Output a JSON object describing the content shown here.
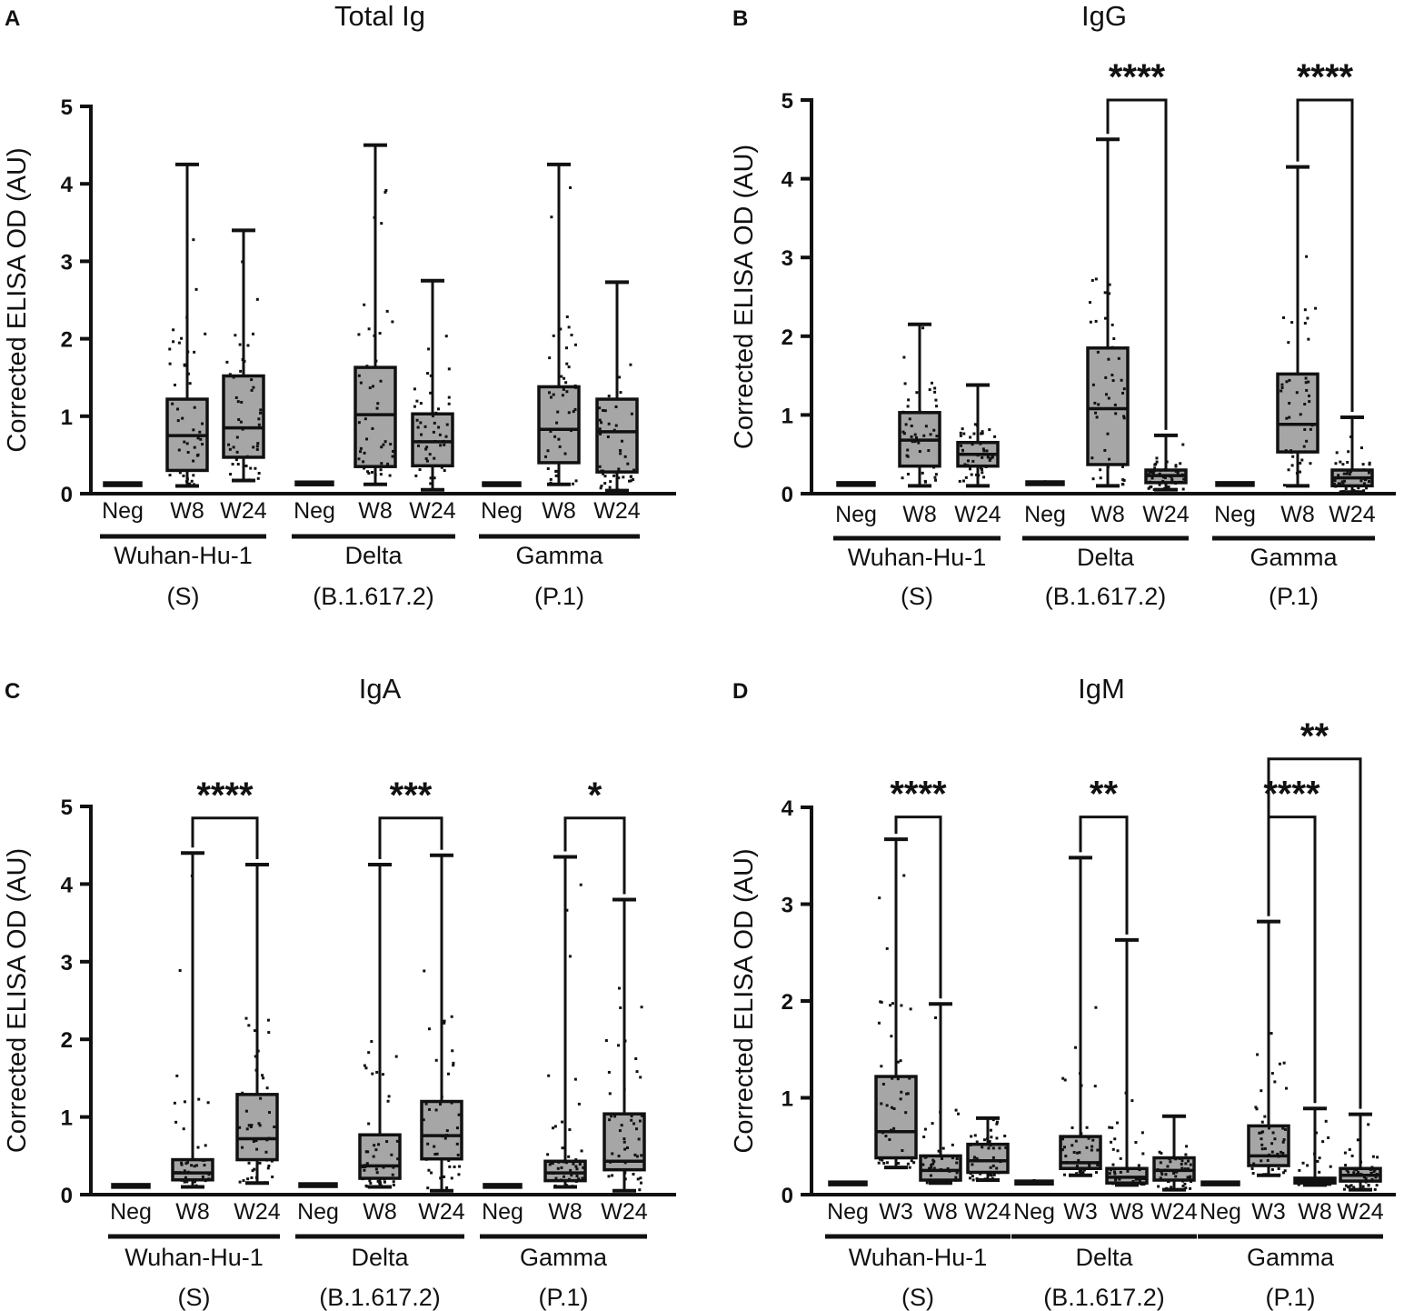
{
  "figure": "Corrected ELISA OD box plots",
  "chart_data": [
    {
      "type": "box",
      "panel": "A",
      "title": "Total Ig",
      "ylabel": "Corrected ELISA OD (AU)",
      "ylim": [
        0,
        5
      ],
      "yticks": [
        "0",
        "1",
        "2",
        "3",
        "4",
        "5"
      ],
      "groups": [
        {
          "name": "Wuhan-Hu-1",
          "sub": "(S)",
          "boxes": [
            {
              "label": "Neg",
              "min": 0.1,
              "q1": 0.12,
              "median": 0.13,
              "q3": 0.14,
              "max": 0.15
            },
            {
              "label": "W8",
              "min": 0.1,
              "q1": 0.3,
              "median": 0.75,
              "q3": 1.22,
              "max": 4.25
            },
            {
              "label": "W24",
              "min": 0.17,
              "q1": 0.47,
              "median": 0.85,
              "q3": 1.52,
              "max": 3.4
            }
          ]
        },
        {
          "name": "Delta",
          "sub": "(B.1.617.2)",
          "boxes": [
            {
              "label": "Neg",
              "min": 0.1,
              "q1": 0.12,
              "median": 0.13,
              "q3": 0.15,
              "max": 0.17
            },
            {
              "label": "W8",
              "min": 0.12,
              "q1": 0.35,
              "median": 1.02,
              "q3": 1.63,
              "max": 4.5
            },
            {
              "label": "W24",
              "min": 0.05,
              "q1": 0.36,
              "median": 0.67,
              "q3": 1.03,
              "max": 2.75
            }
          ]
        },
        {
          "name": "Gamma",
          "sub": "(P.1)",
          "boxes": [
            {
              "label": "Neg",
              "min": 0.11,
              "q1": 0.12,
              "median": 0.13,
              "q3": 0.14,
              "max": 0.15
            },
            {
              "label": "W8",
              "min": 0.12,
              "q1": 0.4,
              "median": 0.83,
              "q3": 1.38,
              "max": 4.25
            },
            {
              "label": "W24",
              "min": 0.04,
              "q1": 0.28,
              "median": 0.8,
              "q3": 1.22,
              "max": 2.73
            }
          ]
        }
      ],
      "significance": []
    },
    {
      "type": "box",
      "panel": "B",
      "title": "IgG",
      "ylabel": "Corrected ELISA OD (AU)",
      "ylim": [
        0,
        5
      ],
      "yticks": [
        "0",
        "1",
        "2",
        "3",
        "4",
        "5"
      ],
      "groups": [
        {
          "name": "Wuhan-Hu-1",
          "sub": "(S)",
          "boxes": [
            {
              "label": "Neg",
              "min": 0.1,
              "q1": 0.12,
              "median": 0.13,
              "q3": 0.14,
              "max": 0.15
            },
            {
              "label": "W8",
              "min": 0.1,
              "q1": 0.35,
              "median": 0.68,
              "q3": 1.03,
              "max": 2.15
            },
            {
              "label": "W24",
              "min": 0.1,
              "q1": 0.35,
              "median": 0.5,
              "q3": 0.65,
              "max": 1.38
            }
          ]
        },
        {
          "name": "Delta",
          "sub": "(B.1.617.2)",
          "boxes": [
            {
              "label": "Neg",
              "min": 0.1,
              "q1": 0.12,
              "median": 0.13,
              "q3": 0.15,
              "max": 0.17
            },
            {
              "label": "W8",
              "min": 0.1,
              "q1": 0.37,
              "median": 1.08,
              "q3": 1.85,
              "max": 4.5
            },
            {
              "label": "W24",
              "min": 0.05,
              "q1": 0.14,
              "median": 0.23,
              "q3": 0.3,
              "max": 0.74
            }
          ]
        },
        {
          "name": "Gamma",
          "sub": "(P.1)",
          "boxes": [
            {
              "label": "Neg",
              "min": 0.11,
              "q1": 0.12,
              "median": 0.13,
              "q3": 0.14,
              "max": 0.15
            },
            {
              "label": "W8",
              "min": 0.1,
              "q1": 0.53,
              "median": 0.88,
              "q3": 1.52,
              "max": 4.15
            },
            {
              "label": "W24",
              "min": 0.02,
              "q1": 0.1,
              "median": 0.2,
              "q3": 0.3,
              "max": 0.97
            }
          ]
        }
      ],
      "significance": [
        {
          "from": [
            1,
            1
          ],
          "to": [
            1,
            2
          ],
          "label": "****",
          "y": 5.0
        },
        {
          "from": [
            2,
            1
          ],
          "to": [
            2,
            2
          ],
          "label": "****",
          "y": 5.0
        }
      ]
    },
    {
      "type": "box",
      "panel": "C",
      "title": "IgA",
      "ylabel": "Corrected ELISA OD (AU)",
      "ylim": [
        0,
        5
      ],
      "yticks": [
        "0",
        "1",
        "2",
        "3",
        "4",
        "5"
      ],
      "groups": [
        {
          "name": "Wuhan-Hu-1",
          "sub": "(S)",
          "boxes": [
            {
              "label": "Neg",
              "min": 0.1,
              "q1": 0.11,
              "median": 0.12,
              "q3": 0.13,
              "max": 0.14
            },
            {
              "label": "W8",
              "min": 0.1,
              "q1": 0.19,
              "median": 0.28,
              "q3": 0.45,
              "max": 4.4
            },
            {
              "label": "W24",
              "min": 0.15,
              "q1": 0.45,
              "median": 0.72,
              "q3": 1.29,
              "max": 4.25
            }
          ]
        },
        {
          "name": "Delta",
          "sub": "(B.1.617.2)",
          "boxes": [
            {
              "label": "Neg",
              "min": 0.1,
              "q1": 0.12,
              "median": 0.13,
              "q3": 0.14,
              "max": 0.15
            },
            {
              "label": "W8",
              "min": 0.1,
              "q1": 0.21,
              "median": 0.37,
              "q3": 0.77,
              "max": 4.25
            },
            {
              "label": "W24",
              "min": 0.05,
              "q1": 0.46,
              "median": 0.76,
              "q3": 1.2,
              "max": 4.37
            }
          ]
        },
        {
          "name": "Gamma",
          "sub": "(P.1)",
          "boxes": [
            {
              "label": "Neg",
              "min": 0.1,
              "q1": 0.11,
              "median": 0.12,
              "q3": 0.13,
              "max": 0.14
            },
            {
              "label": "W8",
              "min": 0.1,
              "q1": 0.18,
              "median": 0.28,
              "q3": 0.43,
              "max": 4.35
            },
            {
              "label": "W24",
              "min": 0.05,
              "q1": 0.32,
              "median": 0.43,
              "q3": 1.04,
              "max": 3.8
            }
          ]
        }
      ],
      "significance": [
        {
          "from": [
            0,
            1
          ],
          "to": [
            0,
            2
          ],
          "label": "****",
          "y": 4.85
        },
        {
          "from": [
            1,
            1
          ],
          "to": [
            1,
            2
          ],
          "label": "***",
          "y": 4.85
        },
        {
          "from": [
            2,
            1
          ],
          "to": [
            2,
            2
          ],
          "label": "*",
          "y": 4.85
        }
      ]
    },
    {
      "type": "box",
      "panel": "D",
      "title": "IgM",
      "ylabel": "Corrected ELISA OD (AU)",
      "ylim": [
        0,
        4
      ],
      "yticks": [
        "0",
        "1",
        "2",
        "3",
        "4"
      ],
      "groups": [
        {
          "name": "Wuhan-Hu-1",
          "sub": "(S)",
          "boxes": [
            {
              "label": "Neg",
              "min": 0.1,
              "q1": 0.11,
              "median": 0.12,
              "q3": 0.13,
              "max": 0.14
            },
            {
              "label": "W3",
              "min": 0.28,
              "q1": 0.38,
              "median": 0.65,
              "q3": 1.22,
              "max": 3.67
            },
            {
              "label": "W8",
              "min": 0.12,
              "q1": 0.15,
              "median": 0.25,
              "q3": 0.4,
              "max": 1.97
            },
            {
              "label": "W24",
              "min": 0.15,
              "q1": 0.23,
              "median": 0.35,
              "q3": 0.52,
              "max": 0.79
            }
          ]
        },
        {
          "name": "Delta",
          "sub": "(B.1.617.2)",
          "boxes": [
            {
              "label": "Neg",
              "min": 0.1,
              "q1": 0.11,
              "median": 0.12,
              "q3": 0.14,
              "max": 0.16
            },
            {
              "label": "W3",
              "min": 0.2,
              "q1": 0.27,
              "median": 0.33,
              "q3": 0.6,
              "max": 3.48
            },
            {
              "label": "W8",
              "min": 0.1,
              "q1": 0.12,
              "median": 0.18,
              "q3": 0.27,
              "max": 2.63
            },
            {
              "label": "W24",
              "min": 0.05,
              "q1": 0.15,
              "median": 0.25,
              "q3": 0.38,
              "max": 0.81
            }
          ]
        },
        {
          "name": "Gamma",
          "sub": "(P.1)",
          "boxes": [
            {
              "label": "Neg",
              "min": 0.1,
              "q1": 0.11,
              "median": 0.12,
              "q3": 0.13,
              "max": 0.14
            },
            {
              "label": "W3",
              "min": 0.2,
              "q1": 0.3,
              "median": 0.4,
              "q3": 0.71,
              "max": 2.82
            },
            {
              "label": "W8",
              "min": 0.1,
              "q1": 0.12,
              "median": 0.14,
              "q3": 0.17,
              "max": 0.89
            },
            {
              "label": "W24",
              "min": 0.05,
              "q1": 0.14,
              "median": 0.2,
              "q3": 0.27,
              "max": 0.83
            }
          ]
        }
      ],
      "significance": [
        {
          "from": [
            0,
            1
          ],
          "to": [
            0,
            2
          ],
          "label": "****",
          "y": 3.9
        },
        {
          "from": [
            1,
            1
          ],
          "to": [
            1,
            2
          ],
          "label": "**",
          "y": 3.9
        },
        {
          "from": [
            2,
            1
          ],
          "to": [
            2,
            2
          ],
          "label": "****",
          "y": 3.9
        },
        {
          "from": [
            2,
            1
          ],
          "to": [
            2,
            3
          ],
          "label": "**",
          "y": 4.5
        }
      ]
    }
  ]
}
